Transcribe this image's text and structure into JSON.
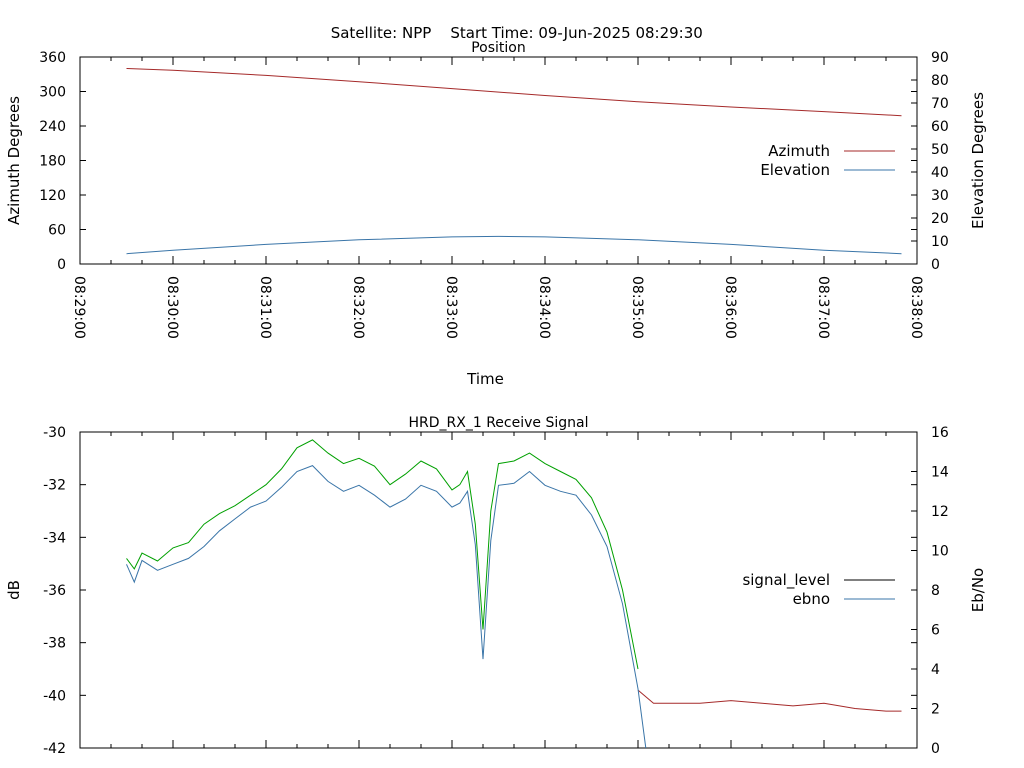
{
  "header": {
    "satellite": "Satellite: NPP",
    "start_time": "Start Time: 09-Jun-2025 08:29:30"
  },
  "chart_data": [
    {
      "type": "line",
      "title": "Position",
      "xlabel": "Time",
      "ylabel": "Azimuth Degrees",
      "y2label": "Elevation Degrees",
      "ylim": [
        0,
        360
      ],
      "y2lim": [
        0,
        90
      ],
      "y_ticks": [
        "0",
        "60",
        "120",
        "180",
        "240",
        "300",
        "360"
      ],
      "y2_ticks": [
        "0",
        "10",
        "20",
        "30",
        "40",
        "50",
        "60",
        "70",
        "80",
        "90"
      ],
      "x_ticks": [
        "08:29:00",
        "08:30:00",
        "08:31:00",
        "08:32:00",
        "08:33:00",
        "08:34:00",
        "08:35:00",
        "08:36:00",
        "08:37:00",
        "08:38:00"
      ],
      "xlim": [
        "08:29:00",
        "08:38:00"
      ],
      "legend": "right",
      "grid": false,
      "series": [
        {
          "name": "Azimuth",
          "axis": "left",
          "color": "#a52a2a",
          "x": [
            "08:29:30",
            "08:30:00",
            "08:31:00",
            "08:32:00",
            "08:33:00",
            "08:34:00",
            "08:35:00",
            "08:36:00",
            "08:37:00",
            "08:37:50"
          ],
          "values": [
            340,
            337,
            328,
            317,
            305,
            293,
            282,
            273,
            265,
            258
          ]
        },
        {
          "name": "Elevation",
          "axis": "right",
          "color": "#3a75a8",
          "x": [
            "08:29:30",
            "08:30:00",
            "08:31:00",
            "08:32:00",
            "08:33:00",
            "08:33:30",
            "08:34:00",
            "08:35:00",
            "08:36:00",
            "08:37:00",
            "08:37:50"
          ],
          "values": [
            4.5,
            6,
            8.5,
            10.5,
            11.8,
            12,
            11.8,
            10.5,
            8.5,
            6,
            4.5
          ]
        }
      ]
    },
    {
      "type": "line",
      "title": "HRD_RX_1 Receive Signal",
      "ylabel": "dB",
      "y2label": "Eb/No",
      "ylim": [
        -42,
        -30
      ],
      "y2lim": [
        0,
        16
      ],
      "y_ticks": [
        "-30",
        "-32",
        "-34",
        "-36",
        "-38",
        "-40",
        "-42"
      ],
      "y2_ticks": [
        "0",
        "2",
        "4",
        "6",
        "8",
        "10",
        "12",
        "14",
        "16"
      ],
      "xlim": [
        "08:29:00",
        "08:38:00"
      ],
      "legend": "right",
      "grid": false,
      "series": [
        {
          "name": "signal_level",
          "axis": "left",
          "color": "#000000",
          "segments": [
            {
              "color": "#00a000",
              "x": [
                "08:29:30",
                "08:29:35",
                "08:29:40",
                "08:29:50",
                "08:30:00",
                "08:30:10",
                "08:30:20",
                "08:30:30",
                "08:30:40",
                "08:30:50",
                "08:31:00",
                "08:31:10",
                "08:31:20",
                "08:31:30",
                "08:31:40",
                "08:31:50",
                "08:32:00",
                "08:32:10",
                "08:32:20",
                "08:32:30",
                "08:32:40",
                "08:32:50",
                "08:33:00",
                "08:33:05",
                "08:33:10",
                "08:33:15",
                "08:33:20",
                "08:33:25",
                "08:33:30",
                "08:33:40",
                "08:33:50",
                "08:34:00",
                "08:34:10",
                "08:34:20",
                "08:34:30",
                "08:34:40",
                "08:34:50",
                "08:35:00"
              ],
              "values": [
                -34.8,
                -35.2,
                -34.6,
                -34.9,
                -34.4,
                -34.2,
                -33.5,
                -33.1,
                -32.8,
                -32.4,
                -32.0,
                -31.4,
                -30.6,
                -30.3,
                -30.8,
                -31.2,
                -31.0,
                -31.3,
                -32.0,
                -31.6,
                -31.1,
                -31.4,
                -32.2,
                -32.0,
                -31.5,
                -33.5,
                -37.5,
                -33.0,
                -31.2,
                -31.1,
                -30.8,
                -31.2,
                -31.5,
                -31.8,
                -32.5,
                -33.8,
                -36.0,
                -39.0
              ]
            },
            {
              "color": "#a52a2a",
              "x": [
                "08:35:00",
                "08:35:10",
                "08:35:20",
                "08:35:40",
                "08:36:00",
                "08:36:20",
                "08:36:40",
                "08:37:00",
                "08:37:20",
                "08:37:40",
                "08:37:50"
              ],
              "values": [
                -39.8,
                -40.3,
                -40.3,
                -40.3,
                -40.2,
                -40.3,
                -40.4,
                -40.3,
                -40.5,
                -40.6,
                -40.6
              ]
            }
          ]
        },
        {
          "name": "ebno",
          "axis": "right",
          "color": "#3a75a8",
          "x": [
            "08:29:30",
            "08:29:35",
            "08:29:40",
            "08:29:50",
            "08:30:00",
            "08:30:10",
            "08:30:20",
            "08:30:30",
            "08:30:40",
            "08:30:50",
            "08:31:00",
            "08:31:10",
            "08:31:20",
            "08:31:30",
            "08:31:40",
            "08:31:50",
            "08:32:00",
            "08:32:10",
            "08:32:20",
            "08:32:30",
            "08:32:40",
            "08:32:50",
            "08:33:00",
            "08:33:05",
            "08:33:10",
            "08:33:15",
            "08:33:20",
            "08:33:25",
            "08:33:30",
            "08:33:40",
            "08:33:50",
            "08:34:00",
            "08:34:10",
            "08:34:20",
            "08:34:30",
            "08:34:40",
            "08:34:50",
            "08:35:00",
            "08:35:05"
          ],
          "values": [
            9.3,
            8.4,
            9.5,
            9.0,
            9.3,
            9.6,
            10.2,
            11.0,
            11.6,
            12.2,
            12.5,
            13.2,
            14.0,
            14.3,
            13.5,
            13.0,
            13.3,
            12.8,
            12.2,
            12.6,
            13.3,
            13.0,
            12.2,
            12.4,
            13.0,
            10.3,
            4.5,
            10.5,
            13.3,
            13.4,
            14.0,
            13.3,
            13.0,
            12.8,
            11.8,
            10.2,
            7.3,
            3.0,
            0
          ]
        }
      ]
    }
  ]
}
